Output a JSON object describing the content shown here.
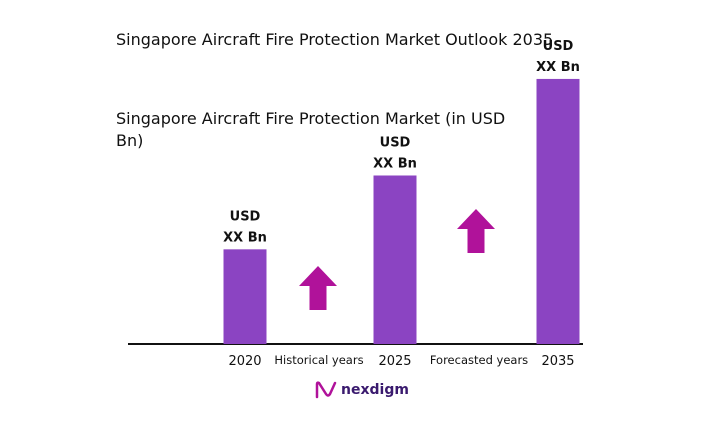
{
  "chart_data": {
    "type": "bar",
    "title": "Singapore Aircraft Fire Protection Market Outlook 2035",
    "subtitle": "Singapore Aircraft Fire Protection Market (in USD Bn)",
    "categories": [
      "2020",
      "2025",
      "2035"
    ],
    "values": [
      1.0,
      1.78,
      2.8
    ],
    "bar_labels": [
      [
        "USD",
        "XX Bn"
      ],
      [
        "USD",
        "XX Bn"
      ],
      [
        "USD",
        "XX Bn"
      ]
    ],
    "period_labels": [
      "Historical years",
      "Forecasted years"
    ],
    "ylim": [
      0,
      3.0
    ],
    "grid": false,
    "bar_color": "#8b44c2",
    "arrow_color": "#b0129a"
  },
  "brand": {
    "name": "nexdigm",
    "color": "#3a1a6e"
  }
}
